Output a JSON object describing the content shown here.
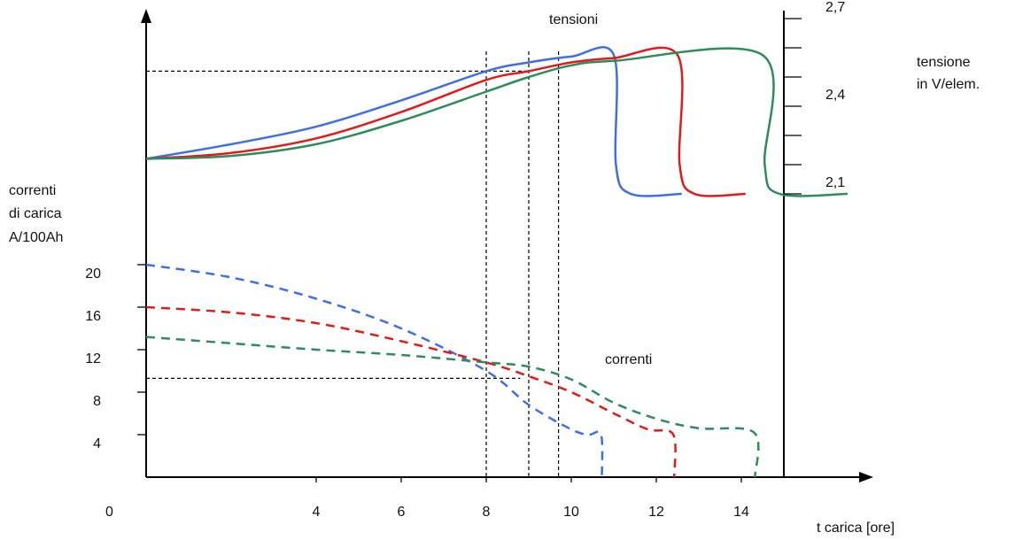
{
  "chart_data": {
    "type": "line",
    "origin_label": "0",
    "labels": {
      "top_title": "tensioni",
      "bottom_title": "correnti",
      "right_axis_line1": "tensione",
      "right_axis_line2": "in V/elem.",
      "left_axis_line1": "correnti",
      "left_axis_line2": "di carica",
      "left_axis_line3": "A/100Ah",
      "xlabel": "t  carica [ore]"
    },
    "x_ticks": [
      "4",
      "6",
      "8",
      "10",
      "12",
      "14"
    ],
    "current_ticks": [
      "20",
      "16",
      "12",
      "8",
      "4"
    ],
    "voltage_ticks": [
      "2,7",
      "2,4",
      "2,1"
    ],
    "colors": {
      "blue": "#3f6fe0",
      "red": "#e01b1b",
      "green": "#2e8b5a"
    },
    "voltage_series": [
      {
        "color": "blue",
        "points": [
          [
            0,
            2.22
          ],
          [
            2,
            2.27
          ],
          [
            4,
            2.33
          ],
          [
            6,
            2.42
          ],
          [
            8,
            2.52
          ],
          [
            9,
            2.55
          ],
          [
            10,
            2.57
          ],
          [
            11,
            2.575
          ],
          [
            11.05,
            2.2
          ],
          [
            11.4,
            2.1
          ],
          [
            12.6,
            2.1
          ]
        ]
      },
      {
        "color": "red",
        "points": [
          [
            0,
            2.22
          ],
          [
            2,
            2.24
          ],
          [
            4,
            2.29
          ],
          [
            6,
            2.38
          ],
          [
            8,
            2.49
          ],
          [
            9,
            2.52
          ],
          [
            10,
            2.55
          ],
          [
            11,
            2.565
          ],
          [
            12.5,
            2.575
          ],
          [
            12.55,
            2.2
          ],
          [
            12.9,
            2.1
          ],
          [
            14.1,
            2.1
          ]
        ]
      },
      {
        "color": "green",
        "points": [
          [
            0,
            2.22
          ],
          [
            2,
            2.23
          ],
          [
            4,
            2.27
          ],
          [
            6,
            2.35
          ],
          [
            8,
            2.45
          ],
          [
            9,
            2.5
          ],
          [
            10,
            2.54
          ],
          [
            11,
            2.555
          ],
          [
            14.5,
            2.575
          ],
          [
            14.55,
            2.2
          ],
          [
            14.9,
            2.1
          ],
          [
            16.5,
            2.1
          ]
        ]
      }
    ],
    "current_series": [
      {
        "color": "blue",
        "points": [
          [
            0,
            20
          ],
          [
            2,
            18.8
          ],
          [
            4,
            16.8
          ],
          [
            6,
            14
          ],
          [
            8,
            10
          ],
          [
            9,
            6.8
          ],
          [
            10,
            4.5
          ],
          [
            10.4,
            4
          ],
          [
            10.7,
            4
          ],
          [
            10.72,
            0
          ]
        ]
      },
      {
        "color": "red",
        "points": [
          [
            0,
            16
          ],
          [
            2,
            15.5
          ],
          [
            4,
            14.5
          ],
          [
            6,
            12.8
          ],
          [
            8,
            10.8
          ],
          [
            9,
            9.5
          ],
          [
            10,
            8
          ],
          [
            11,
            6
          ],
          [
            11.8,
            4.5
          ],
          [
            12.4,
            4
          ],
          [
            12.42,
            0
          ]
        ]
      },
      {
        "color": "green",
        "points": [
          [
            0,
            13.2
          ],
          [
            2,
            12.6
          ],
          [
            4,
            12
          ],
          [
            6,
            11.5
          ],
          [
            8,
            10.8
          ],
          [
            9,
            10.4
          ],
          [
            10,
            9.2
          ],
          [
            11,
            7
          ],
          [
            12,
            5.5
          ],
          [
            13,
            4.6
          ],
          [
            14.3,
            4.2
          ],
          [
            14.32,
            0
          ]
        ]
      }
    ],
    "guides": {
      "voltage_level": 2.52,
      "current_level": 9.3,
      "times": [
        8,
        9,
        9.7
      ]
    }
  }
}
